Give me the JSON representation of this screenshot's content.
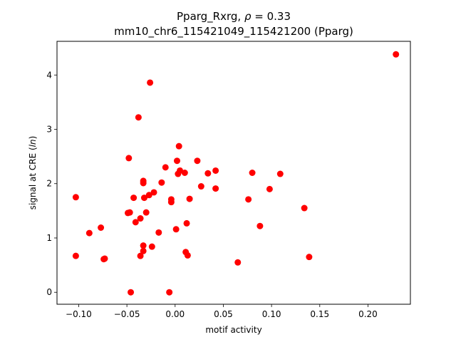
{
  "chart_data": {
    "type": "scatter",
    "title_line1": "Pparg_Rxrg, ρ = 0.33",
    "title_line2": "mm10_chr6_115421049_115421200 (Pparg)",
    "xlabel": "motif activity",
    "ylabel": "signal at CRE (ln)",
    "xlim": [
      -0.1225,
      0.244
    ],
    "ylim": [
      -0.22,
      4.62
    ],
    "xticks": [
      -0.1,
      -0.05,
      0.0,
      0.05,
      0.1,
      0.15,
      0.2
    ],
    "xtick_labels": [
      "−0.10",
      "−0.05",
      "0.00",
      "0.05",
      "0.10",
      "0.15",
      "0.20"
    ],
    "yticks": [
      0,
      1,
      2,
      3,
      4
    ],
    "ytick_labels": [
      "0",
      "1",
      "2",
      "3",
      "4"
    ],
    "grid": false,
    "marker_color": "#ff0000",
    "points": [
      {
        "x": 0.229,
        "y": 4.38
      },
      {
        "x": -0.026,
        "y": 3.86
      },
      {
        "x": -0.038,
        "y": 3.22
      },
      {
        "x": 0.004,
        "y": 2.69
      },
      {
        "x": -0.048,
        "y": 2.47
      },
      {
        "x": 0.002,
        "y": 2.42
      },
      {
        "x": 0.023,
        "y": 2.42
      },
      {
        "x": -0.01,
        "y": 2.3
      },
      {
        "x": 0.005,
        "y": 2.24
      },
      {
        "x": 0.042,
        "y": 2.24
      },
      {
        "x": 0.01,
        "y": 2.2
      },
      {
        "x": 0.08,
        "y": 2.2
      },
      {
        "x": 0.003,
        "y": 2.18
      },
      {
        "x": 0.034,
        "y": 2.19
      },
      {
        "x": 0.109,
        "y": 2.18
      },
      {
        "x": -0.033,
        "y": 2.05
      },
      {
        "x": -0.033,
        "y": 2.01
      },
      {
        "x": -0.014,
        "y": 2.02
      },
      {
        "x": 0.027,
        "y": 1.95
      },
      {
        "x": 0.042,
        "y": 1.91
      },
      {
        "x": 0.098,
        "y": 1.9
      },
      {
        "x": -0.022,
        "y": 1.84
      },
      {
        "x": -0.027,
        "y": 1.79
      },
      {
        "x": -0.103,
        "y": 1.75
      },
      {
        "x": -0.043,
        "y": 1.74
      },
      {
        "x": -0.032,
        "y": 1.74
      },
      {
        "x": -0.004,
        "y": 1.71
      },
      {
        "x": 0.015,
        "y": 1.72
      },
      {
        "x": 0.076,
        "y": 1.71
      },
      {
        "x": -0.004,
        "y": 1.66
      },
      {
        "x": 0.134,
        "y": 1.55
      },
      {
        "x": -0.03,
        "y": 1.47
      },
      {
        "x": -0.049,
        "y": 1.46
      },
      {
        "x": -0.047,
        "y": 1.47
      },
      {
        "x": -0.036,
        "y": 1.36
      },
      {
        "x": -0.041,
        "y": 1.29
      },
      {
        "x": 0.012,
        "y": 1.27
      },
      {
        "x": 0.088,
        "y": 1.22
      },
      {
        "x": -0.077,
        "y": 1.19
      },
      {
        "x": 0.001,
        "y": 1.16
      },
      {
        "x": -0.089,
        "y": 1.09
      },
      {
        "x": -0.017,
        "y": 1.1
      },
      {
        "x": -0.033,
        "y": 0.86
      },
      {
        "x": -0.024,
        "y": 0.84
      },
      {
        "x": -0.033,
        "y": 0.76
      },
      {
        "x": 0.011,
        "y": 0.74
      },
      {
        "x": 0.013,
        "y": 0.68
      },
      {
        "x": -0.036,
        "y": 0.67
      },
      {
        "x": -0.103,
        "y": 0.67
      },
      {
        "x": 0.139,
        "y": 0.65
      },
      {
        "x": -0.073,
        "y": 0.62
      },
      {
        "x": -0.074,
        "y": 0.61
      },
      {
        "x": 0.065,
        "y": 0.55
      },
      {
        "x": -0.046,
        "y": 0.0
      },
      {
        "x": -0.006,
        "y": 0.0
      }
    ]
  }
}
